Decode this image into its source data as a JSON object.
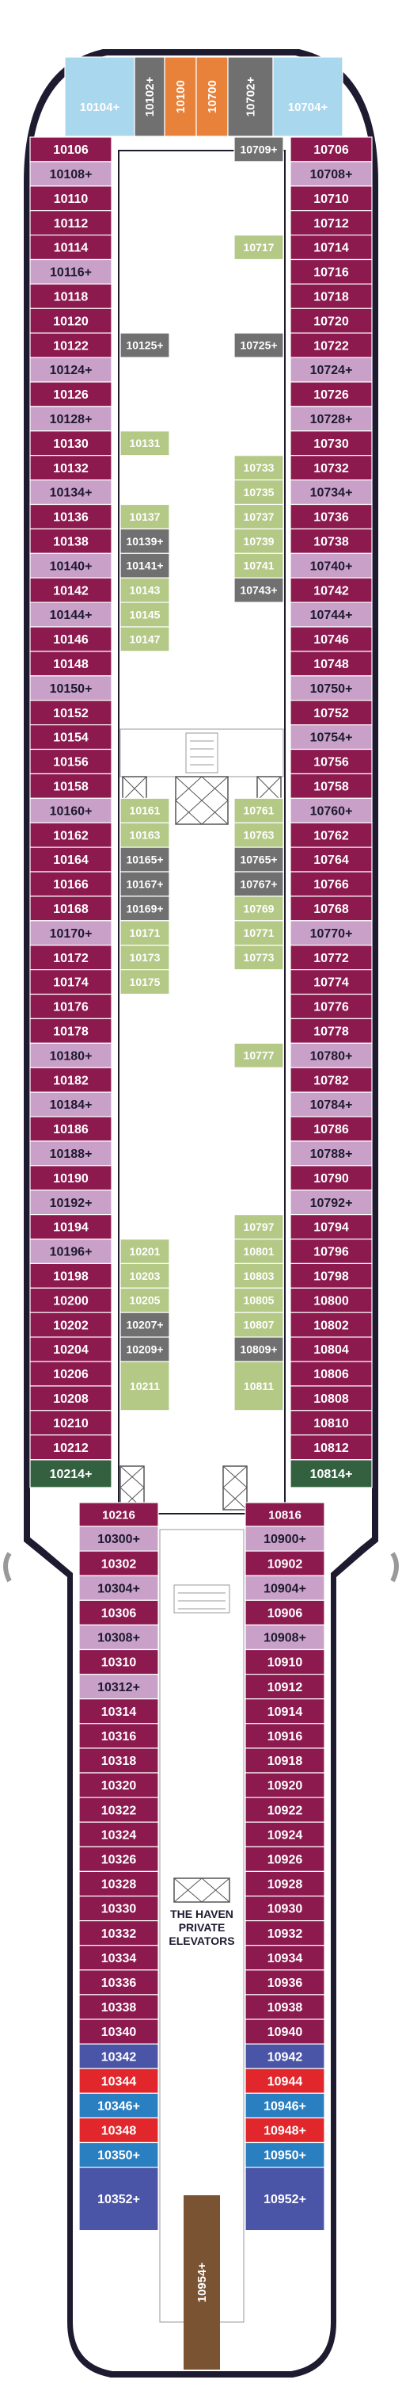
{
  "colors": {
    "hull": "#1e1a30",
    "deck": "#ffffff",
    "inside_cabin": "#8c1a4f",
    "balcony_cabin": "#c9a1c8",
    "mini_suite": "#b5c987",
    "studio": "#707070",
    "forward_suite": "#a9d7ee",
    "aft_suite": "#4b55a8",
    "red_suite": "#e1262c",
    "blue_suite": "#2a7fc1",
    "orange_suite": "#e8813a",
    "haven_green": "#33603f",
    "spa_brown": "#7a5432",
    "text_light": "#ffffff",
    "text_dark": "#1e1a30"
  },
  "bow": {
    "suites": [
      "10104+",
      "10102+",
      "10100",
      "10700",
      "10702+",
      "10704+"
    ]
  },
  "port_cabins_fwd": [
    "10106",
    "10108+",
    "10110",
    "10112",
    "10114",
    "10116+",
    "10118",
    "10120",
    "10122",
    "10124+",
    "10126",
    "10128+",
    "10130",
    "10132",
    "10134+",
    "10136",
    "10138",
    "10140+",
    "10142",
    "10144+",
    "10146",
    "10148",
    "10150+",
    "10152",
    "10154",
    "10156",
    "10158",
    "10160+",
    "10162",
    "10164",
    "10166",
    "10168",
    "10170+",
    "10172",
    "10174",
    "10176",
    "10178",
    "10180+",
    "10182",
    "10184+",
    "10186",
    "10188+",
    "10190",
    "10192+",
    "10194",
    "10196+",
    "10198",
    "10200",
    "10202",
    "10204",
    "10206",
    "10208",
    "10210",
    "10212"
  ],
  "stbd_cabins_fwd": [
    "10706",
    "10708+",
    "10710",
    "10712",
    "10714",
    "10716",
    "10718",
    "10720",
    "10722",
    "10724+",
    "10726",
    "10728+",
    "10730",
    "10732",
    "10734+",
    "10736",
    "10738",
    "10740+",
    "10742",
    "10744+",
    "10746",
    "10748",
    "10750+",
    "10752",
    "10754+",
    "10756",
    "10758",
    "10760+",
    "10762",
    "10764",
    "10766",
    "10768",
    "10770+",
    "10772",
    "10774",
    "10776",
    "10778",
    "10780+",
    "10782",
    "10784+",
    "10786",
    "10788+",
    "10790",
    "10792+",
    "10794",
    "10796",
    "10798",
    "10800",
    "10802",
    "10804",
    "10806",
    "10808",
    "10810",
    "10812"
  ],
  "interior_left_labels": [
    "10125+",
    "10131",
    "10137",
    "10139+",
    "10141+",
    "10143",
    "10145",
    "10147",
    "10161",
    "10163",
    "10165+",
    "10167+",
    "10169+",
    "10171",
    "10173",
    "10175",
    "10201",
    "10203",
    "10205",
    "10207+",
    "10209+",
    "10211"
  ],
  "interior_right_labels": [
    "10709+",
    "10717",
    "10725+",
    "10733",
    "10735",
    "10737",
    "10739",
    "10741",
    "10743+",
    "10761",
    "10763",
    "10765+",
    "10767+",
    "10769",
    "10771",
    "10773",
    "10777",
    "10797",
    "10801",
    "10803",
    "10805",
    "10807",
    "10809+",
    "10811"
  ],
  "corner_labels": {
    "port": "10214+",
    "stbd": "10814+",
    "port_aft_start": "10216",
    "stbd_aft_start": "10816"
  },
  "port_cabins_aft": [
    "10300+",
    "10302",
    "10304+",
    "10306",
    "10308+",
    "10310",
    "10312+",
    "10314",
    "10316",
    "10318",
    "10320",
    "10322",
    "10324",
    "10326",
    "10328",
    "10330",
    "10332",
    "10334",
    "10336",
    "10338",
    "10340",
    "10342",
    "10344",
    "10346+",
    "10348",
    "10350+",
    "10352+"
  ],
  "stbd_cabins_aft": [
    "10900+",
    "10902",
    "10904+",
    "10906",
    "10908+",
    "10910",
    "10912",
    "10914",
    "10916",
    "10918",
    "10920",
    "10922",
    "10924",
    "10926",
    "10928",
    "10930",
    "10932",
    "10934",
    "10936",
    "10938",
    "10940",
    "10942",
    "10944",
    "10946+",
    "10948+",
    "10950+",
    "10952+"
  ],
  "stern": {
    "center_suite": "10954+"
  },
  "haven_label": [
    "THE HAVEN",
    "PRIVATE",
    "ELEVATORS"
  ]
}
